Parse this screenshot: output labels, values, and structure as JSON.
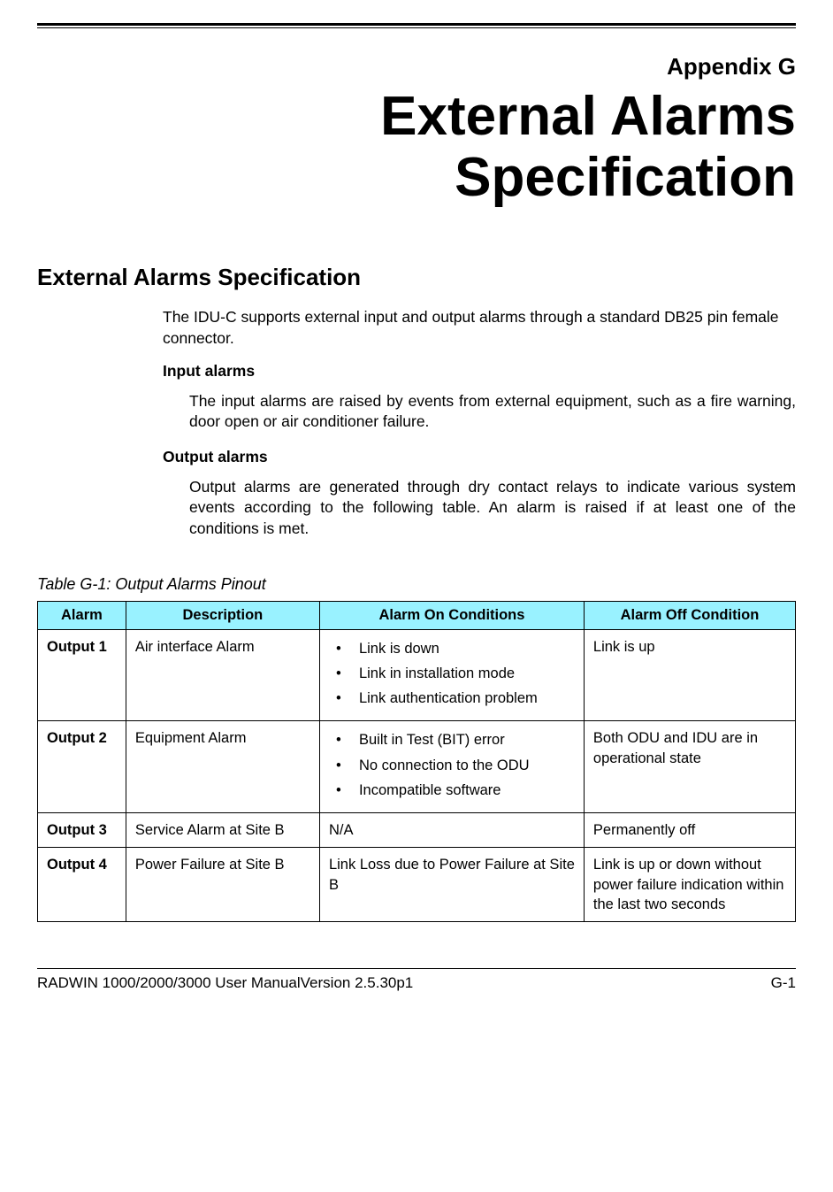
{
  "header": {
    "appendix": "Appendix G",
    "title_line1": "External Alarms",
    "title_line2": "Specification"
  },
  "section": {
    "heading": "External Alarms Specification",
    "intro": "The IDU-C supports external input and output alarms through a standard DB25 pin female connector.",
    "input_label": "Input alarms",
    "input_text": "The input alarms are raised by events from external equipment, such as a fire warning, door open or air conditioner failure.",
    "output_label": "Output alarms",
    "output_text": "Output alarms are generated through dry contact relays to indicate various system events according to the following table. An alarm is raised if at least one of the conditions is met."
  },
  "table": {
    "caption": "Table G-1: Output Alarms Pinout",
    "columns": [
      "Alarm",
      "Description",
      "Alarm On Conditions",
      "Alarm Off Condition"
    ],
    "header_bg": "#99f2ff",
    "rows": [
      {
        "alarm": "Output 1",
        "description": "Air interface Alarm",
        "on_bullets": [
          "Link is down",
          "Link in installation mode",
          "Link authentication problem"
        ],
        "on_text": null,
        "off": "Link is up"
      },
      {
        "alarm": "Output 2",
        "description": "Equipment Alarm",
        "on_bullets": [
          "Built in Test (BIT) error",
          "No connection to the ODU",
          "Incompatible software"
        ],
        "on_text": null,
        "off": "Both ODU and IDU are in operational state"
      },
      {
        "alarm": "Output 3",
        "description": "Service Alarm at Site B",
        "on_bullets": null,
        "on_text": "N/A",
        "off": "Permanently off"
      },
      {
        "alarm": "Output 4",
        "description": "Power Failure at Site B",
        "on_bullets": null,
        "on_text": "Link Loss due to Power Failure at Site B",
        "off": "Link is up or down without power failure indication within the last two seconds"
      }
    ]
  },
  "footer": {
    "left": "RADWIN 1000/2000/3000 User ManualVersion  2.5.30p1",
    "right": "G-1"
  },
  "style": {
    "title_fontsize": 62,
    "heading_fontsize": 26,
    "body_fontsize": 17.5,
    "table_fontsize": 16.5,
    "caption_fontsize": 18,
    "text_color": "#000000",
    "background_color": "#ffffff"
  }
}
